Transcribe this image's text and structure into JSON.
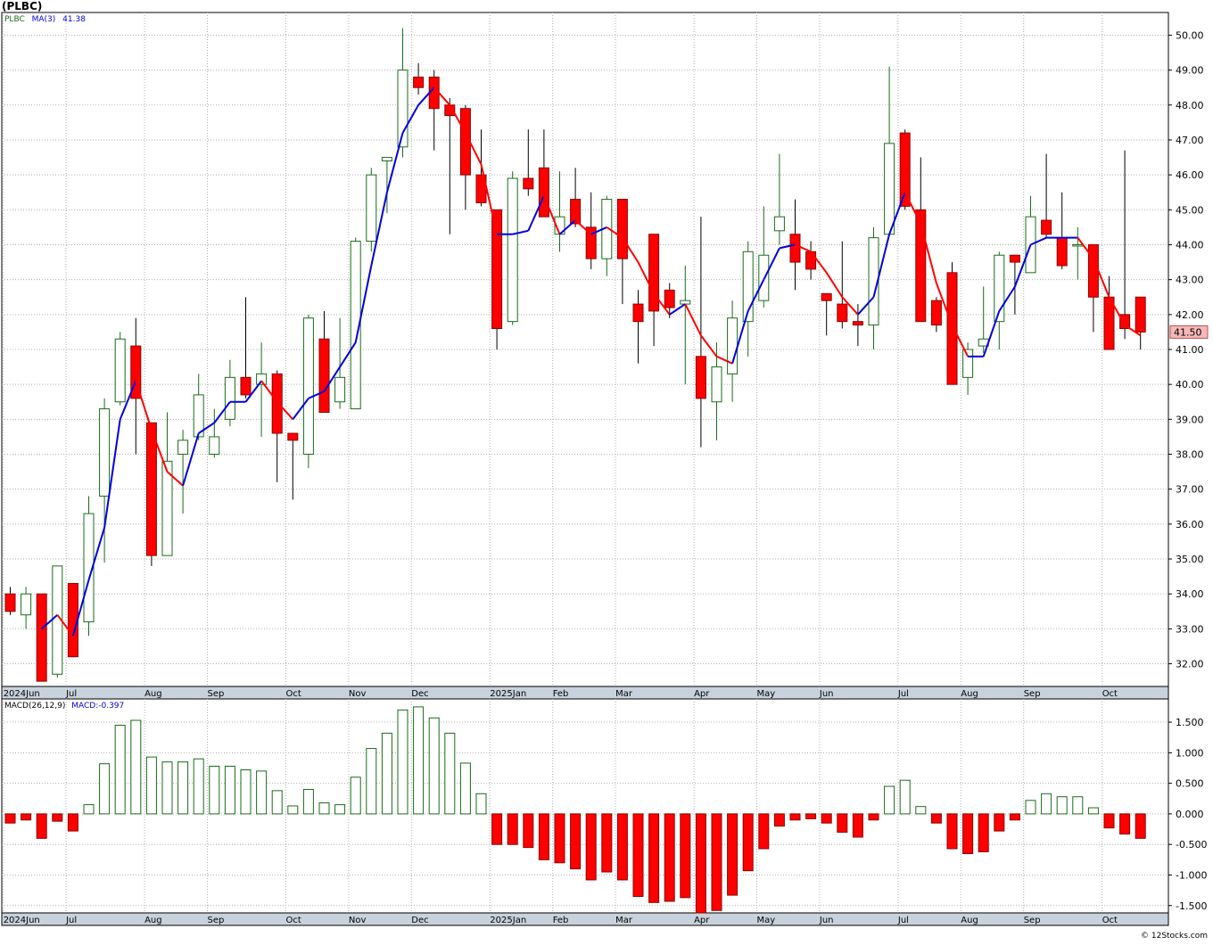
{
  "header": {
    "symbol": "(PLBC)"
  },
  "price_legend": {
    "ticker": "PLBC",
    "ma_label": "MA(3)",
    "ma_value": "41.38"
  },
  "macd_legend": {
    "label": "MACD(26,12,9)",
    "value_label": "MACD:-0.397"
  },
  "last_price_label": "41.50",
  "credit": "© 12Stocks.com",
  "colors": {
    "up": "#1a6b1a",
    "down": "#ff0000",
    "ma_up": "#0000dd",
    "ma_down": "#ff0000",
    "grid": "#b0b0b0",
    "axis_band": "#c8d2dc",
    "price_tag": "#f4b8b8"
  },
  "chart_data": [
    {
      "type": "candlestick",
      "title": "(PLBC)",
      "y_ticks": [
        32,
        33,
        34,
        35,
        36,
        37,
        38,
        39,
        40,
        41,
        42,
        43,
        44,
        45,
        46,
        47,
        48,
        49,
        50
      ],
      "ylim": [
        31.35,
        50.65
      ],
      "x_labels": [
        "2024Jun",
        "Jul",
        "Aug",
        "Sep",
        "Oct",
        "Nov",
        "Dec",
        "2025Jan",
        "Feb",
        "Mar",
        "Apr",
        "May",
        "Jun",
        "Jul",
        "Aug",
        "Sep",
        "Oct"
      ],
      "x_label_bars": [
        0,
        4,
        9,
        13,
        18,
        22,
        26,
        31,
        35,
        39,
        44,
        48,
        52,
        57,
        61,
        65,
        70
      ],
      "bars": [
        {
          "o": 34.0,
          "h": 34.2,
          "l": 33.4,
          "c": 33.5
        },
        {
          "o": 33.4,
          "h": 34.2,
          "l": 33.0,
          "c": 34.0
        },
        {
          "o": 34.0,
          "h": 34.0,
          "l": 31.5,
          "c": 31.5
        },
        {
          "o": 31.7,
          "h": 34.8,
          "l": 31.6,
          "c": 34.8
        },
        {
          "o": 34.3,
          "h": 34.3,
          "l": 32.2,
          "c": 32.2
        },
        {
          "o": 33.2,
          "h": 36.8,
          "l": 32.8,
          "c": 36.3
        },
        {
          "o": 36.8,
          "h": 39.6,
          "l": 34.9,
          "c": 39.3
        },
        {
          "o": 39.5,
          "h": 41.5,
          "l": 39.4,
          "c": 41.3
        },
        {
          "o": 41.1,
          "h": 41.9,
          "l": 38.0,
          "c": 39.6
        },
        {
          "o": 38.9,
          "h": 38.9,
          "l": 34.8,
          "c": 35.1
        },
        {
          "o": 35.1,
          "h": 39.2,
          "l": 35.1,
          "c": 37.8
        },
        {
          "o": 38.0,
          "h": 38.7,
          "l": 36.3,
          "c": 38.4
        },
        {
          "o": 38.5,
          "h": 40.3,
          "l": 38.4,
          "c": 39.7
        },
        {
          "o": 38.0,
          "h": 39.3,
          "l": 37.9,
          "c": 38.5
        },
        {
          "o": 39.0,
          "h": 40.7,
          "l": 38.8,
          "c": 40.2
        },
        {
          "o": 40.2,
          "h": 42.5,
          "l": 39.6,
          "c": 39.7
        },
        {
          "o": 40.0,
          "h": 41.2,
          "l": 38.5,
          "c": 40.3
        },
        {
          "o": 40.3,
          "h": 40.4,
          "l": 37.2,
          "c": 38.6
        },
        {
          "o": 38.6,
          "h": 38.6,
          "l": 36.7,
          "c": 38.4
        },
        {
          "o": 38.0,
          "h": 42.0,
          "l": 37.6,
          "c": 41.9
        },
        {
          "o": 41.3,
          "h": 42.1,
          "l": 39.2,
          "c": 39.2
        },
        {
          "o": 39.5,
          "h": 41.9,
          "l": 39.3,
          "c": 40.2
        },
        {
          "o": 39.3,
          "h": 44.2,
          "l": 39.3,
          "c": 44.1
        },
        {
          "o": 44.1,
          "h": 46.2,
          "l": 43.8,
          "c": 46.0
        },
        {
          "o": 46.4,
          "h": 46.5,
          "l": 44.9,
          "c": 46.5
        },
        {
          "o": 46.8,
          "h": 50.2,
          "l": 46.5,
          "c": 49.0
        },
        {
          "o": 48.8,
          "h": 49.2,
          "l": 48.3,
          "c": 48.5
        },
        {
          "o": 48.8,
          "h": 49.0,
          "l": 46.7,
          "c": 47.9
        },
        {
          "o": 48.0,
          "h": 48.2,
          "l": 44.3,
          "c": 47.7
        },
        {
          "o": 47.9,
          "h": 48.0,
          "l": 45.0,
          "c": 46.0
        },
        {
          "o": 46.0,
          "h": 47.3,
          "l": 45.1,
          "c": 45.2
        },
        {
          "o": 45.0,
          "h": 45.0,
          "l": 41.0,
          "c": 41.6
        },
        {
          "o": 41.8,
          "h": 46.1,
          "l": 41.7,
          "c": 45.9
        },
        {
          "o": 45.9,
          "h": 47.3,
          "l": 45.4,
          "c": 45.6
        },
        {
          "o": 46.2,
          "h": 47.3,
          "l": 44.8,
          "c": 44.8
        },
        {
          "o": 44.3,
          "h": 46.1,
          "l": 43.8,
          "c": 44.8
        },
        {
          "o": 45.3,
          "h": 46.2,
          "l": 44.5,
          "c": 44.6
        },
        {
          "o": 44.5,
          "h": 45.5,
          "l": 43.3,
          "c": 43.6
        },
        {
          "o": 43.6,
          "h": 45.4,
          "l": 43.1,
          "c": 45.3
        },
        {
          "o": 45.3,
          "h": 45.3,
          "l": 42.3,
          "c": 43.6
        },
        {
          "o": 42.3,
          "h": 42.7,
          "l": 40.6,
          "c": 41.8
        },
        {
          "o": 44.3,
          "h": 44.3,
          "l": 41.1,
          "c": 42.1
        },
        {
          "o": 42.7,
          "h": 42.9,
          "l": 41.9,
          "c": 42.2
        },
        {
          "o": 42.3,
          "h": 43.4,
          "l": 40.0,
          "c": 42.4
        },
        {
          "o": 40.8,
          "h": 44.8,
          "l": 38.2,
          "c": 39.6
        },
        {
          "o": 39.5,
          "h": 41.2,
          "l": 38.4,
          "c": 40.5
        },
        {
          "o": 40.3,
          "h": 42.4,
          "l": 39.5,
          "c": 41.9
        },
        {
          "o": 41.8,
          "h": 44.1,
          "l": 40.8,
          "c": 43.8
        },
        {
          "o": 42.4,
          "h": 45.1,
          "l": 42.2,
          "c": 43.7
        },
        {
          "o": 44.4,
          "h": 46.6,
          "l": 44.0,
          "c": 44.8
        },
        {
          "o": 44.3,
          "h": 45.3,
          "l": 42.7,
          "c": 43.5
        },
        {
          "o": 43.8,
          "h": 44.1,
          "l": 43.0,
          "c": 43.3
        },
        {
          "o": 42.6,
          "h": 42.6,
          "l": 41.4,
          "c": 42.4
        },
        {
          "o": 42.3,
          "h": 44.1,
          "l": 41.6,
          "c": 41.8
        },
        {
          "o": 41.8,
          "h": 42.3,
          "l": 41.1,
          "c": 41.7
        },
        {
          "o": 41.7,
          "h": 44.5,
          "l": 41.0,
          "c": 44.2
        },
        {
          "o": 44.3,
          "h": 49.1,
          "l": 44.3,
          "c": 46.9
        },
        {
          "o": 47.2,
          "h": 47.3,
          "l": 45.0,
          "c": 45.1
        },
        {
          "o": 45.0,
          "h": 46.5,
          "l": 41.8,
          "c": 41.8
        },
        {
          "o": 42.4,
          "h": 42.5,
          "l": 41.5,
          "c": 41.7
        },
        {
          "o": 43.2,
          "h": 43.5,
          "l": 40.0,
          "c": 40.0
        },
        {
          "o": 40.2,
          "h": 41.2,
          "l": 39.7,
          "c": 41.0
        },
        {
          "o": 41.1,
          "h": 42.8,
          "l": 40.9,
          "c": 41.3
        },
        {
          "o": 41.8,
          "h": 43.8,
          "l": 41.0,
          "c": 43.7
        },
        {
          "o": 43.7,
          "h": 43.7,
          "l": 42.0,
          "c": 43.5
        },
        {
          "o": 43.2,
          "h": 45.4,
          "l": 43.2,
          "c": 44.8
        },
        {
          "o": 44.7,
          "h": 46.6,
          "l": 44.2,
          "c": 44.3
        },
        {
          "o": 44.2,
          "h": 45.5,
          "l": 43.3,
          "c": 43.4
        },
        {
          "o": 44.0,
          "h": 44.5,
          "l": 43.0,
          "c": 44.0
        },
        {
          "o": 44.0,
          "h": 44.0,
          "l": 41.5,
          "c": 42.5
        },
        {
          "o": 42.5,
          "h": 43.1,
          "l": 41.0,
          "c": 41.0
        },
        {
          "o": 42.0,
          "h": 46.7,
          "l": 41.3,
          "c": 41.6
        },
        {
          "o": 42.5,
          "h": 42.5,
          "l": 41.0,
          "c": 41.5
        }
      ],
      "ma3": [
        null,
        null,
        33.0,
        33.4,
        32.8,
        34.4,
        35.9,
        39.0,
        40.1,
        38.7,
        37.5,
        37.1,
        38.6,
        38.9,
        39.5,
        39.5,
        40.1,
        39.5,
        39.0,
        39.6,
        39.8,
        40.5,
        41.2,
        43.4,
        45.5,
        47.2,
        48.0,
        48.5,
        48.0,
        47.2,
        46.3,
        44.3,
        44.3,
        44.4,
        45.4,
        44.3,
        44.7,
        44.3,
        44.5,
        44.2,
        43.5,
        42.6,
        42.0,
        42.3,
        41.4,
        40.8,
        40.6,
        42.1,
        43.0,
        43.9,
        44.0,
        43.8,
        43.2,
        42.5,
        42.0,
        42.5,
        44.3,
        45.5,
        44.6,
        42.9,
        41.7,
        40.8,
        40.8,
        42.1,
        42.8,
        44.0,
        44.2,
        44.2,
        44.2,
        43.6,
        42.5,
        41.7,
        41.4
      ],
      "macd_hist": [
        -0.15,
        -0.1,
        -0.4,
        -0.12,
        -0.28,
        0.15,
        0.82,
        1.45,
        1.53,
        0.93,
        0.85,
        0.85,
        0.9,
        0.78,
        0.78,
        0.72,
        0.7,
        0.38,
        0.13,
        0.4,
        0.18,
        0.15,
        0.6,
        1.07,
        1.32,
        1.7,
        1.75,
        1.57,
        1.32,
        0.83,
        0.33,
        -0.5,
        -0.5,
        -0.55,
        -0.75,
        -0.8,
        -0.9,
        -1.08,
        -0.95,
        -1.08,
        -1.35,
        -1.45,
        -1.43,
        -1.37,
        -1.62,
        -1.58,
        -1.33,
        -0.93,
        -0.57,
        -0.2,
        -0.1,
        -0.08,
        -0.15,
        -0.3,
        -0.38,
        -0.1,
        0.45,
        0.55,
        0.12,
        -0.15,
        -0.57,
        -0.65,
        -0.62,
        -0.28,
        -0.1,
        0.22,
        0.33,
        0.28,
        0.28,
        0.1,
        -0.23,
        -0.33,
        -0.4
      ],
      "macd_ticks": [
        1.5,
        1.0,
        0.5,
        0.0,
        -0.5,
        -1.0,
        -1.5
      ],
      "macd_tick_labels": [
        "1.500",
        "1.000",
        "0.500",
        "0.000",
        "-0.500",
        "-1.000",
        "-1.500"
      ],
      "macd_ylim": [
        -1.62,
        1.88
      ]
    }
  ]
}
